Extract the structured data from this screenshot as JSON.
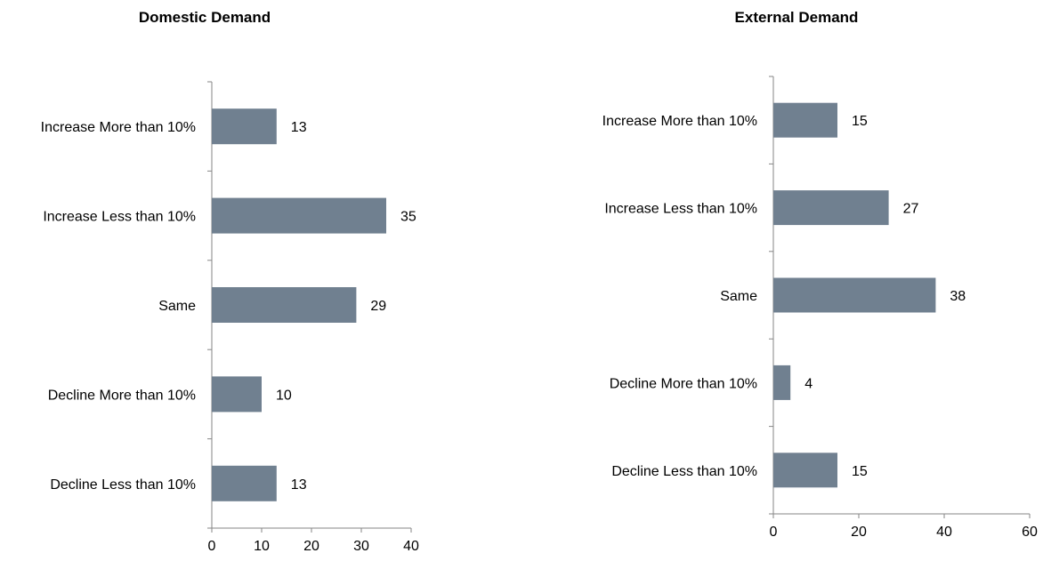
{
  "chart_data": [
    {
      "type": "bar",
      "orientation": "horizontal",
      "title": "Domestic Demand",
      "categories": [
        "Increase More than 10%",
        "Increase Less than 10%",
        "Same",
        "Decline More than 10%",
        "Decline Less than 10%"
      ],
      "values": [
        13,
        35,
        29,
        10,
        13
      ],
      "value_labels": [
        "13",
        "35",
        "29",
        "10",
        "13"
      ],
      "xlim": [
        0,
        40
      ],
      "xticks": [
        0,
        10,
        20,
        30,
        40
      ],
      "xtick_labels": [
        "0",
        "10",
        "20",
        "30",
        "40"
      ],
      "grid": false,
      "legend": "none",
      "bar_color": "#708090"
    },
    {
      "type": "bar",
      "orientation": "horizontal",
      "title": "External Demand",
      "categories": [
        "Increase More than 10%",
        "Increase Less than 10%",
        "Same",
        "Decline More than 10%",
        "Decline Less than 10%"
      ],
      "values": [
        15,
        27,
        38,
        4,
        15
      ],
      "value_labels": [
        "15",
        "27",
        "38",
        "4",
        "15"
      ],
      "xlim": [
        0,
        60
      ],
      "xticks": [
        0,
        20,
        40,
        60
      ],
      "xtick_labels": [
        "0",
        "20",
        "40",
        "60"
      ],
      "grid": false,
      "legend": "none",
      "bar_color": "#708090"
    }
  ]
}
